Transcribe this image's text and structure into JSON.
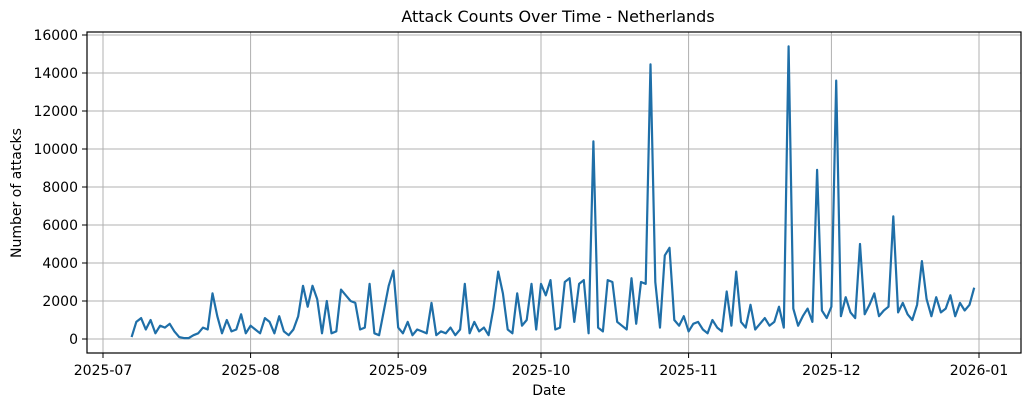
{
  "chart_data": {
    "type": "line",
    "title": "Attack Counts Over Time - Netherlands",
    "xlabel": "Date",
    "ylabel": "Number of attacks",
    "x_start": "2025-07-07",
    "x_step_days": 1,
    "xlim": [
      "2025-07-01",
      "2026-01-01"
    ],
    "ylim": [
      -1000,
      16500
    ],
    "x_ticks": [
      "2025-07",
      "2025-08",
      "2025-09",
      "2025-10",
      "2025-11",
      "2025-12",
      "2026-01"
    ],
    "y_ticks": [
      0,
      2000,
      4000,
      6000,
      8000,
      10000,
      12000,
      14000,
      16000
    ],
    "grid": true,
    "color": "#1f6fa8",
    "series": [
      {
        "name": "Attacks",
        "values": [
          100,
          900,
          1100,
          500,
          1000,
          300,
          700,
          600,
          800,
          400,
          100,
          50,
          50,
          200,
          300,
          600,
          500,
          2400,
          1200,
          300,
          1000,
          400,
          500,
          1300,
          300,
          700,
          500,
          300,
          1100,
          900,
          300,
          1200,
          400,
          200,
          500,
          1200,
          2800,
          1700,
          2800,
          2100,
          300,
          2000,
          300,
          400,
          2600,
          2300,
          2000,
          1900,
          500,
          600,
          2900,
          300,
          200,
          1500,
          2800,
          3600,
          600,
          300,
          900,
          200,
          500,
          400,
          300,
          1900,
          200,
          400,
          300,
          600,
          200,
          500,
          2900,
          300,
          900,
          400,
          600,
          200,
          1600,
          3550,
          2400,
          500,
          300,
          2400,
          700,
          1000,
          2900,
          500,
          2900,
          2300,
          3100,
          500,
          600,
          3000,
          3200,
          900,
          2900,
          3100,
          300,
          10400,
          600,
          400,
          3100,
          3000,
          900,
          700,
          500,
          3200,
          800,
          3000,
          2900,
          14450,
          3000,
          600,
          4400,
          4800,
          1000,
          700,
          1200,
          400,
          800,
          900,
          500,
          300,
          1000,
          600,
          400,
          2500,
          700,
          3550,
          900,
          600,
          1800,
          500,
          800,
          1100,
          700,
          900,
          1700,
          600,
          15400,
          1600,
          700,
          1200,
          1600,
          900,
          8900,
          1500,
          1100,
          1700,
          13600,
          1200,
          2200,
          1400,
          1100,
          5000,
          1300,
          1800,
          2400,
          1200,
          1500,
          1700,
          6450,
          1400,
          1900,
          1300,
          1000,
          1800,
          4100,
          2100,
          1200,
          2200,
          1400,
          1600,
          2300,
          1200,
          1900,
          1500,
          1800,
          2700
        ]
      }
    ]
  }
}
